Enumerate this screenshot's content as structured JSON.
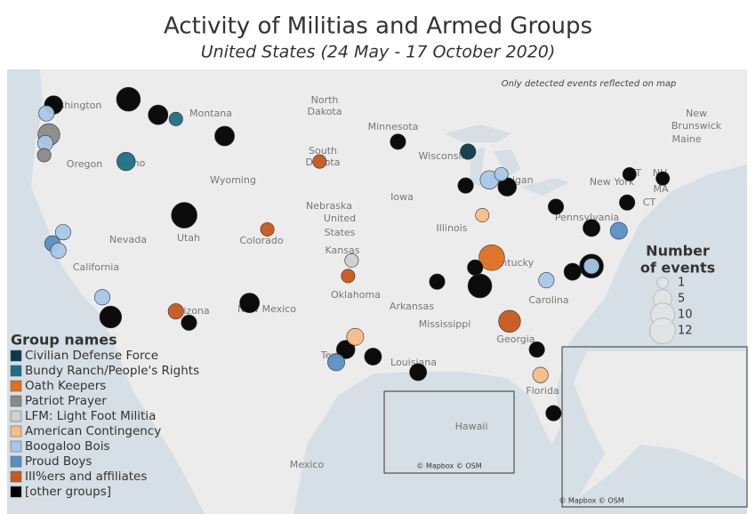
{
  "title": "Activity of Militias and Armed Groups",
  "subtitle": "United States (24 May - 17 October 2020)",
  "note": "Only detected events reflected on map",
  "attribution": "© Mapbox © OSM",
  "map_labels": [
    "Washington",
    "Montana",
    "North",
    "Dakota",
    "Minnesota",
    "Wisconsin",
    "Michigan",
    "Maine",
    "New",
    "Brunswick",
    "Oregon",
    "Idaho",
    "South",
    "Dakota",
    "Wyoming",
    "Nebraska",
    "Iowa",
    "United",
    "States",
    "Illinois",
    "Nevada",
    "Utah",
    "Colorado",
    "Kansas",
    "California",
    "Arizona",
    "New Mexico",
    "Oklahoma",
    "Arkansas",
    "Mississippi",
    "Texas",
    "Louisiana",
    "Georgia",
    "Carolina",
    "Florida",
    "Kentucky",
    "Pennsylvania",
    "New York",
    "VT",
    "NH",
    "MA",
    "CT",
    "Hawaii",
    "Mexico"
  ],
  "legend": {
    "title": "Group names",
    "groups": [
      {
        "name": "Civilian Defense Force",
        "color": "#0b3a4a"
      },
      {
        "name": "Bundy Ranch/People's Rights",
        "color": "#1f6f86"
      },
      {
        "name": "Oath Keepers",
        "color": "#e07020"
      },
      {
        "name": "Patriot Prayer",
        "color": "#8a8a8a"
      },
      {
        "name": "LFM: Light Foot Militia",
        "color": "#d0d0d0"
      },
      {
        "name": "American Contingency",
        "color": "#f7bd86"
      },
      {
        "name": "Boogaloo Bois",
        "color": "#a6c8e8"
      },
      {
        "name": "Proud Boys",
        "color": "#5b8fc4"
      },
      {
        "name": "III%ers and affiliates",
        "color": "#c8591a"
      },
      {
        "name": "[other groups]",
        "color": "#000000"
      }
    ]
  },
  "size_legend": {
    "title": [
      "Number",
      "of events"
    ],
    "values": [
      1,
      5,
      10,
      12
    ]
  },
  "events": [
    {
      "lon": -122.3,
      "lat": 47.6,
      "group": 9,
      "count": 5
    },
    {
      "lon": -116.0,
      "lat": 48.0,
      "group": 9,
      "count": 10
    },
    {
      "lon": -122.9,
      "lat": 47.0,
      "group": 6,
      "count": 3
    },
    {
      "lon": -122.7,
      "lat": 45.5,
      "group": 3,
      "count": 8
    },
    {
      "lon": -123.0,
      "lat": 44.9,
      "group": 6,
      "count": 3
    },
    {
      "lon": -123.1,
      "lat": 44.05,
      "group": 3,
      "count": 2
    },
    {
      "lon": -116.2,
      "lat": 43.6,
      "group": 1,
      "count": 5
    },
    {
      "lon": -113.5,
      "lat": 46.9,
      "group": 9,
      "count": 6
    },
    {
      "lon": -107.9,
      "lat": 45.4,
      "group": 9,
      "count": 6
    },
    {
      "lon": -112.0,
      "lat": 46.6,
      "group": 1,
      "count": 2
    },
    {
      "lon": -121.5,
      "lat": 38.6,
      "group": 6,
      "count": 3
    },
    {
      "lon": -122.4,
      "lat": 37.8,
      "group": 7,
      "count": 3
    },
    {
      "lon": -121.9,
      "lat": 37.3,
      "group": 6,
      "count": 3
    },
    {
      "lon": -118.2,
      "lat": 34.0,
      "group": 6,
      "count": 3
    },
    {
      "lon": -117.5,
      "lat": 32.6,
      "group": 9,
      "count": 8
    },
    {
      "lon": -111.3,
      "lat": 39.8,
      "group": 9,
      "count": 12
    },
    {
      "lon": -104.3,
      "lat": 38.8,
      "group": 8,
      "count": 2
    },
    {
      "lon": -112.0,
      "lat": 33.0,
      "group": 8,
      "count": 3
    },
    {
      "lon": -110.9,
      "lat": 32.2,
      "group": 9,
      "count": 3
    },
    {
      "lon": -105.8,
      "lat": 33.6,
      "group": 9,
      "count": 6
    },
    {
      "lon": -97.2,
      "lat": 36.6,
      "group": 4,
      "count": 2
    },
    {
      "lon": -97.5,
      "lat": 35.5,
      "group": 8,
      "count": 2
    },
    {
      "lon": -96.9,
      "lat": 31.2,
      "group": 5,
      "count": 4
    },
    {
      "lon": -97.7,
      "lat": 30.3,
      "group": 9,
      "count": 5
    },
    {
      "lon": -95.4,
      "lat": 29.8,
      "group": 9,
      "count": 4
    },
    {
      "lon": -98.5,
      "lat": 29.4,
      "group": 7,
      "count": 4
    },
    {
      "lon": -99.9,
      "lat": 43.6,
      "group": 8,
      "count": 2
    },
    {
      "lon": -93.3,
      "lat": 45.0,
      "group": 9,
      "count": 3
    },
    {
      "lon": -87.4,
      "lat": 44.3,
      "group": 0,
      "count": 3
    },
    {
      "lon": -87.6,
      "lat": 41.9,
      "group": 9,
      "count": 3
    },
    {
      "lon": -84.1,
      "lat": 41.8,
      "group": 9,
      "count": 5
    },
    {
      "lon": -84.6,
      "lat": 42.7,
      "group": 6,
      "count": 2
    },
    {
      "lon": -86.2,
      "lat": 39.8,
      "group": 5,
      "count": 2
    },
    {
      "lon": -85.4,
      "lat": 36.8,
      "group": 2,
      "count": 12
    },
    {
      "lon": -86.4,
      "lat": 34.8,
      "group": 9,
      "count": 10
    },
    {
      "lon": -83.9,
      "lat": 32.3,
      "group": 8,
      "count": 8
    },
    {
      "lon": -86.8,
      "lat": 36.1,
      "group": 9,
      "count": 3
    },
    {
      "lon": -90.0,
      "lat": 35.1,
      "group": 9,
      "count": 3
    },
    {
      "lon": -91.6,
      "lat": 28.7,
      "group": 9,
      "count": 4
    },
    {
      "lon": -81.6,
      "lat": 30.3,
      "group": 9,
      "count": 3
    },
    {
      "lon": -81.3,
      "lat": 28.5,
      "group": 5,
      "count": 3
    },
    {
      "lon": -80.2,
      "lat": 25.8,
      "group": 9,
      "count": 3
    },
    {
      "lon": -77.0,
      "lat": 36.2,
      "group": 9,
      "count": 10
    },
    {
      "lon": -77.0,
      "lat": 36.2,
      "group": 6,
      "count": 3
    },
    {
      "lon": -78.6,
      "lat": 35.8,
      "group": 9,
      "count": 4
    },
    {
      "lon": -80.8,
      "lat": 35.2,
      "group": 6,
      "count": 3
    },
    {
      "lon": -77.0,
      "lat": 38.9,
      "group": 9,
      "count": 4
    },
    {
      "lon": -74.7,
      "lat": 38.7,
      "group": 7,
      "count": 4
    },
    {
      "lon": -80.0,
      "lat": 40.4,
      "group": 9,
      "count": 3
    },
    {
      "lon": -74.0,
      "lat": 40.7,
      "group": 9,
      "count": 3
    },
    {
      "lon": -71.0,
      "lat": 42.4,
      "group": 9,
      "count": 2
    },
    {
      "lon": -73.8,
      "lat": 42.7,
      "group": 9,
      "count": 2
    },
    {
      "lon": -85.6,
      "lat": 42.3,
      "group": 6,
      "count": 5
    }
  ]
}
